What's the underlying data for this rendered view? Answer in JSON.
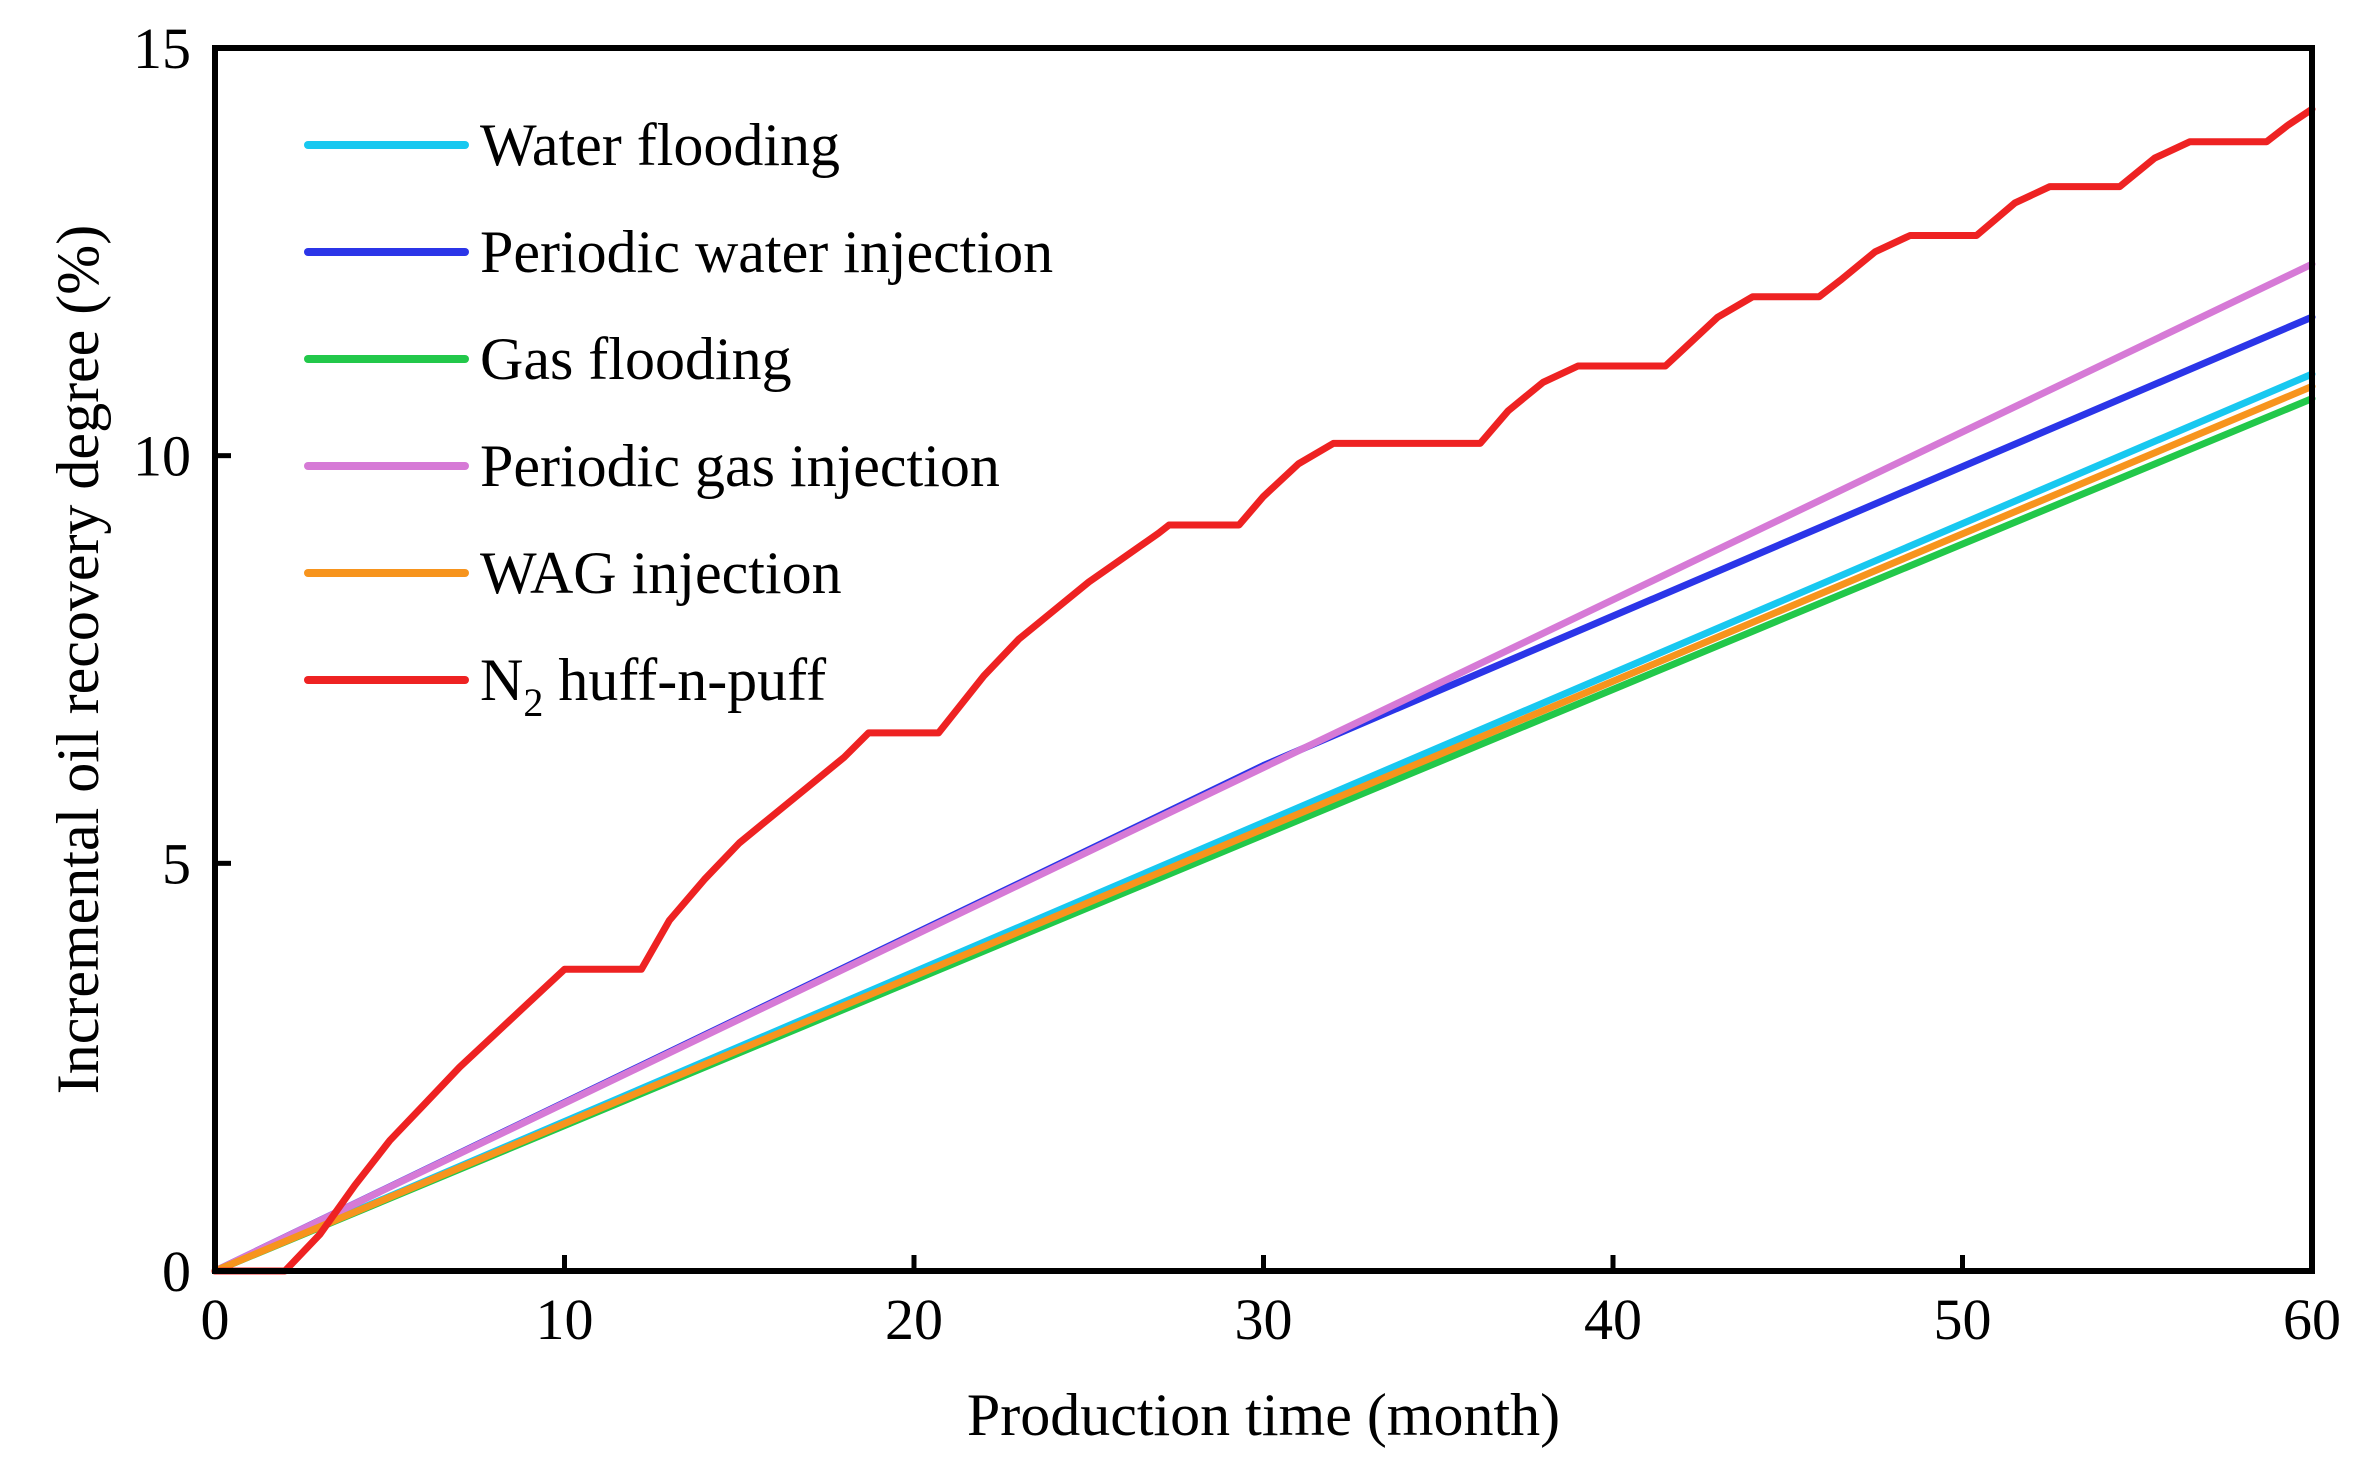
{
  "chart_data": {
    "type": "line",
    "xlabel": "Production time (month)",
    "ylabel": "Incremental oil recovery degree (%)",
    "xlim": [
      0,
      60
    ],
    "ylim": [
      0,
      15
    ],
    "xticks": [
      0,
      10,
      20,
      30,
      40,
      50,
      60
    ],
    "yticks": [
      0,
      5,
      10,
      15
    ],
    "legend_position": "top-left",
    "grid": false,
    "series": [
      {
        "name": "Water flooding",
        "color": "#18C8F0",
        "points": [
          [
            0,
            0
          ],
          [
            60,
            11.0
          ]
        ]
      },
      {
        "name": "Periodic water injection",
        "color": "#2B35E8",
        "points": [
          [
            0,
            0
          ],
          [
            30,
            6.2
          ],
          [
            60,
            11.7
          ]
        ]
      },
      {
        "name": "Gas flooding",
        "color": "#22C84A",
        "points": [
          [
            0,
            0
          ],
          [
            60,
            10.7
          ]
        ]
      },
      {
        "name": "Periodic gas injection",
        "color": "#D67AD6",
        "points": [
          [
            0,
            0
          ],
          [
            60,
            12.35
          ]
        ]
      },
      {
        "name": "WAG injection",
        "color": "#F7941D",
        "points": [
          [
            0,
            0
          ],
          [
            60,
            10.85
          ]
        ]
      },
      {
        "name": "N2 huff-n-puff",
        "legend_main": "N",
        "legend_sub": "2",
        "legend_rest": " huff-n-puff",
        "color": "#EE2222",
        "points": [
          [
            0,
            0
          ],
          [
            2,
            0
          ],
          [
            3,
            0.45
          ],
          [
            4,
            1.05
          ],
          [
            5,
            1.6
          ],
          [
            6,
            2.05
          ],
          [
            7,
            2.5
          ],
          [
            8,
            2.9
          ],
          [
            9,
            3.3
          ],
          [
            10,
            3.7
          ],
          [
            12.2,
            3.7
          ],
          [
            13,
            4.3
          ],
          [
            14,
            4.8
          ],
          [
            15,
            5.25
          ],
          [
            16,
            5.6
          ],
          [
            17,
            5.95
          ],
          [
            18,
            6.3
          ],
          [
            18.7,
            6.6
          ],
          [
            20.7,
            6.6
          ],
          [
            22,
            7.3
          ],
          [
            23,
            7.75
          ],
          [
            24,
            8.1
          ],
          [
            25,
            8.45
          ],
          [
            26,
            8.75
          ],
          [
            27,
            9.05
          ],
          [
            27.3,
            9.15
          ],
          [
            29.3,
            9.15
          ],
          [
            30,
            9.5
          ],
          [
            31,
            9.9
          ],
          [
            32,
            10.15
          ],
          [
            36.2,
            10.15
          ],
          [
            37,
            10.55
          ],
          [
            38,
            10.9
          ],
          [
            39,
            11.1
          ],
          [
            41.5,
            11.1
          ],
          [
            42,
            11.3
          ],
          [
            43,
            11.7
          ],
          [
            44,
            11.95
          ],
          [
            45.9,
            11.95
          ],
          [
            46.5,
            12.15
          ],
          [
            47.5,
            12.5
          ],
          [
            48.5,
            12.7
          ],
          [
            50.4,
            12.7
          ],
          [
            51.5,
            13.1
          ],
          [
            52.5,
            13.3
          ],
          [
            54.5,
            13.3
          ],
          [
            55.5,
            13.65
          ],
          [
            56.5,
            13.85
          ],
          [
            58.7,
            13.85
          ],
          [
            59.3,
            14.05
          ],
          [
            60,
            14.25
          ]
        ]
      }
    ]
  }
}
